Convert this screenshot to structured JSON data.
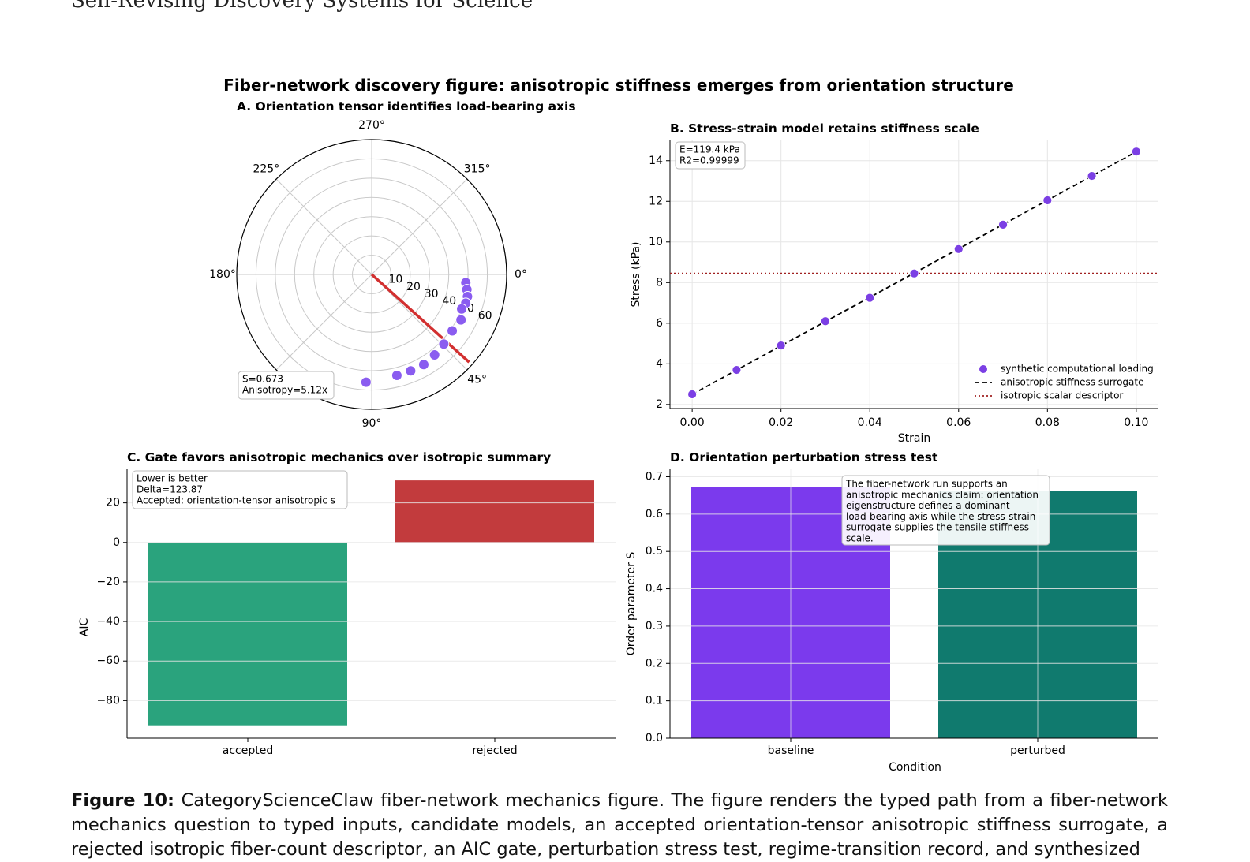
{
  "running_header": "Self-Revising Discovery Systems for Science",
  "figure_title": "Fiber-network discovery figure: anisotropic stiffness emerges from orientation structure",
  "caption": {
    "label": "Figure 10:",
    "text": "CategoryScienceClaw fiber-network mechanics figure. The figure renders the typed path from a fiber-network mechanics question to typed inputs, candidate models, an accepted orientation-tensor anisotropic stiffness surrogate, a rejected isotropic fiber-count descriptor, an AIC gate, perturbation stress test, regime-transition record, and synthesized"
  },
  "colors": {
    "purple": "#7b3aed",
    "green": "#2aa37d",
    "red": "#c23b3d",
    "teal": "#107a6e",
    "axis_red": "#d23030",
    "grid": "#e6e6e6"
  },
  "chart_data": [
    {
      "panel": "A",
      "type": "scatter",
      "projection": "polar",
      "title": "A. Orientation tensor identifies load-bearing axis",
      "angle_tick_labels": [
        "0°",
        "45°",
        "90°",
        "180°",
        "225°",
        "270°",
        "315°"
      ],
      "radial_ticks": [
        10,
        20,
        30,
        40,
        50,
        60
      ],
      "rlim": [
        0,
        70
      ],
      "points": [
        {
          "theta": 5,
          "r": 49
        },
        {
          "theta": 9,
          "r": 50
        },
        {
          "theta": 13,
          "r": 51
        },
        {
          "theta": 17,
          "r": 51
        },
        {
          "theta": 21,
          "r": 50
        },
        {
          "theta": 27,
          "r": 52
        },
        {
          "theta": 35,
          "r": 51
        },
        {
          "theta": 44,
          "r": 52
        },
        {
          "theta": 52,
          "r": 53
        },
        {
          "theta": 60,
          "r": 54
        },
        {
          "theta": 68,
          "r": 54
        },
        {
          "theta": 76,
          "r": 54
        },
        {
          "theta": 93,
          "r": 56
        }
      ],
      "principal_axis": {
        "theta": 42,
        "r": 68
      },
      "annotation": [
        "S=0.673",
        "Anisotropy=5.12x"
      ]
    },
    {
      "panel": "B",
      "type": "scatter",
      "title": "B. Stress-strain model retains stiffness scale",
      "xlabel": "Strain",
      "ylabel": "Stress (kPa)",
      "xlim": [
        -0.005,
        0.105
      ],
      "ylim": [
        1.8,
        15.0
      ],
      "xticks": [
        "0.00",
        "0.02",
        "0.04",
        "0.06",
        "0.08",
        "0.10"
      ],
      "yticks": [
        "2",
        "4",
        "6",
        "8",
        "10",
        "12",
        "14"
      ],
      "x": [
        0.0,
        0.01,
        0.02,
        0.03,
        0.04,
        0.05,
        0.06,
        0.07,
        0.08,
        0.09,
        0.1
      ],
      "y": [
        2.5,
        3.7,
        4.9,
        6.1,
        7.25,
        8.45,
        9.65,
        10.85,
        12.05,
        13.25,
        14.45
      ],
      "fit_line": {
        "x": [
          0.0,
          0.1
        ],
        "y": [
          2.5,
          14.44
        ]
      },
      "isotropic_level": 8.45,
      "annotation": [
        "E=119.4 kPa",
        "R2=0.99999"
      ],
      "legend": [
        "synthetic computational loading",
        "anisotropic stiffness surrogate",
        "isotropic scalar descriptor"
      ],
      "legend_position": "lower-right",
      "grid": true
    },
    {
      "panel": "C",
      "type": "bar",
      "title": "C. Gate favors anisotropic mechanics over isotropic summary",
      "ylabel": "AIC",
      "categories": [
        "accepted",
        "rejected"
      ],
      "values": [
        -92.5,
        31.37
      ],
      "ylim": [
        -99,
        37
      ],
      "yticks": [
        "20",
        "0",
        "−20",
        "−40",
        "−60",
        "−80"
      ],
      "annotation": [
        "Lower is better",
        "Delta=123.87",
        "Accepted: orientation-tensor anisotropic s"
      ],
      "grid": true
    },
    {
      "panel": "D",
      "type": "bar",
      "title": "D. Orientation perturbation stress test",
      "xlabel": "Condition",
      "ylabel": "Order parameter S",
      "categories": [
        "baseline",
        "perturbed"
      ],
      "values": [
        0.673,
        0.661
      ],
      "ylim": [
        0,
        0.72
      ],
      "yticks": [
        "0.0",
        "0.1",
        "0.2",
        "0.3",
        "0.4",
        "0.5",
        "0.6",
        "0.7"
      ],
      "annotation": [
        "The fiber-network run supports an",
        "anisotropic mechanics claim: orientation",
        "eigenstructure defines a dominant",
        "load-bearing axis while the stress-strain",
        "surrogate supplies the tensile stiffness",
        "scale."
      ],
      "grid": true
    }
  ]
}
